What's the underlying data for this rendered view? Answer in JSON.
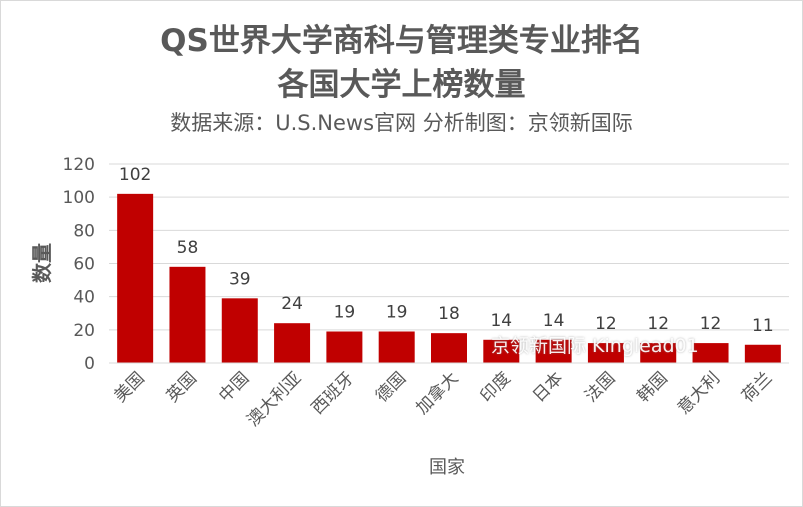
{
  "title_line1": "QS世界大学商科与管理类专业排名",
  "title_line2": "各国大学上榜数量",
  "subtitle": "数据来源：U.S.News官网 分析制图：京领新国际",
  "watermark": "京领新国际 Kinglead01",
  "colors": {
    "bar": "#c00000",
    "text": "#595959",
    "grid": "#d9d9d9"
  },
  "chart_data": {
    "type": "bar",
    "title": "QS世界大学商科与管理类专业排名 各国大学上榜数量",
    "xlabel": "国家",
    "ylabel": "数量",
    "ylim": [
      0,
      120
    ],
    "yticks": [
      0,
      20,
      40,
      60,
      80,
      100,
      120
    ],
    "categories": [
      "美国",
      "英国",
      "中国",
      "澳大利亚",
      "西班牙",
      "德国",
      "加拿大",
      "印度",
      "日本",
      "法国",
      "韩国",
      "意大利",
      "荷兰"
    ],
    "values": [
      102,
      58,
      39,
      24,
      19,
      19,
      18,
      14,
      14,
      12,
      12,
      12,
      11
    ],
    "grid": true,
    "legend": "none"
  }
}
